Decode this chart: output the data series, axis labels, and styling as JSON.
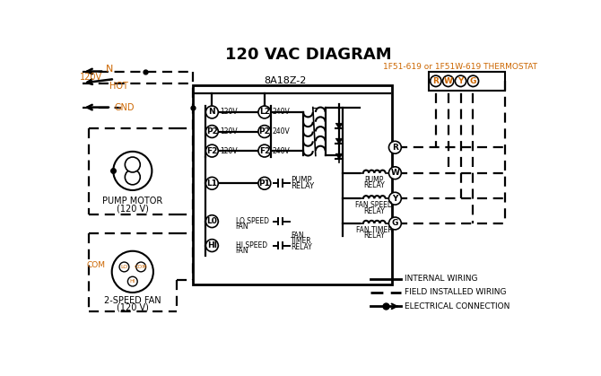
{
  "title": "120 VAC DIAGRAM",
  "bg_color": "#ffffff",
  "orange": "#cc6600",
  "black": "#000000",
  "thermostat_label": "1F51-619 or 1F51W-619 THERMOSTAT",
  "box_label": "8A18Z-2",
  "legend": [
    "INTERNAL WIRING",
    "FIELD INSTALLED WIRING",
    "ELECTRICAL CONNECTION"
  ],
  "terminal_labels_left": [
    "N",
    "P2",
    "F2"
  ],
  "terminal_labels_right": [
    "L2",
    "P2",
    "F2"
  ],
  "voltage_left": [
    "120V",
    "120V",
    "120V"
  ],
  "voltage_right": [
    "240V",
    "240V",
    "240V"
  ],
  "relay_terminals": [
    "R",
    "W",
    "Y",
    "G"
  ],
  "thermo_terminals": [
    "R",
    "W",
    "Y",
    "G"
  ]
}
